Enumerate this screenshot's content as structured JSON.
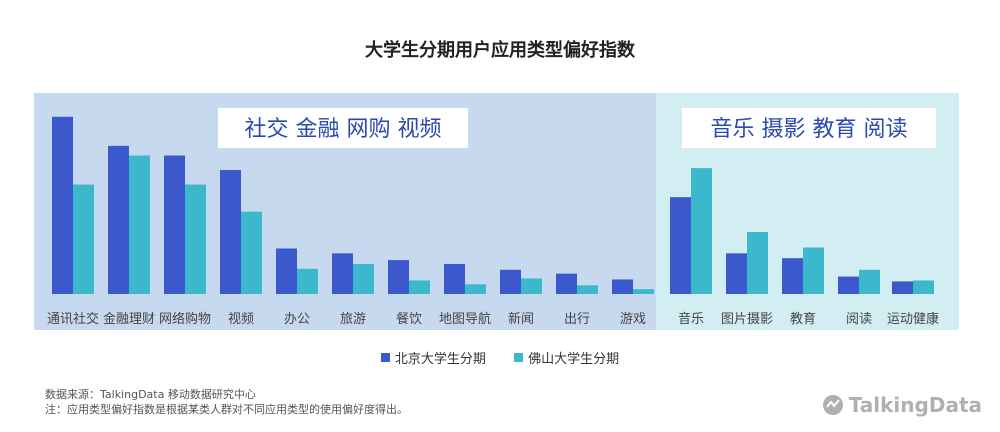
{
  "title": "大学生分期用户应用类型偏好指数",
  "colors": {
    "series1": "#3B58CC",
    "series2": "#3BB8CB",
    "panel_left": "#C6D9EF",
    "panel_right": "#D2EEF3",
    "label_box_text": "#2A4AB0"
  },
  "group_labels": {
    "left": "社交 金融 网购 视频",
    "right": "音乐 摄影 教育 阅读"
  },
  "chart_data": {
    "type": "bar",
    "categories": [
      "通讯社交",
      "金融理财",
      "网络购物",
      "视频",
      "办公",
      "旅游",
      "餐饮",
      "地图导航",
      "新闻",
      "出行",
      "游戏",
      "音乐",
      "图片摄影",
      "教育",
      "阅读",
      "运动健康"
    ],
    "series": [
      {
        "name": "北京大学生分期",
        "values": [
          183,
          153,
          143,
          128,
          47,
          42,
          35,
          31,
          25,
          21,
          15,
          100,
          42,
          37,
          18,
          13
        ]
      },
      {
        "name": "佛山大学生分期",
        "values": [
          113,
          143,
          113,
          85,
          26,
          31,
          14,
          10,
          16,
          9,
          5,
          130,
          64,
          48,
          25,
          14
        ]
      }
    ],
    "ylim": [
      0,
      190
    ]
  },
  "footer": {
    "source": "数据来源：TalkingData 移动数据研究中心",
    "note": "注：应用类型偏好指数是根据某类人群对不同应用类型的使用偏好度得出。"
  },
  "logo": "TalkingData"
}
